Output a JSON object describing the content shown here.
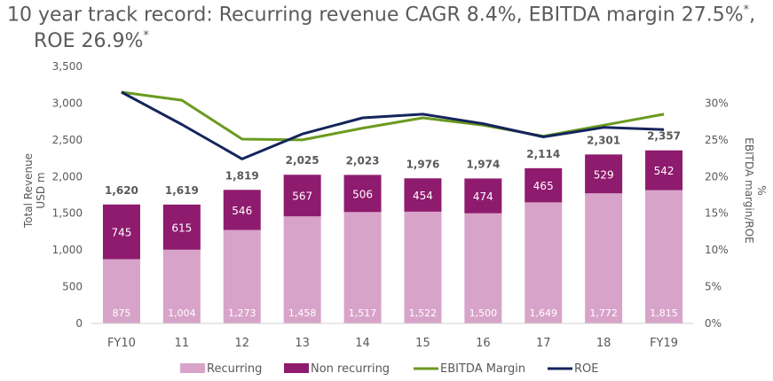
{
  "title": {
    "line1": "10 year track record: Recurring revenue CAGR 8.4%, EBITDA margin 27.5%",
    "sup1": "*",
    "line1_end": ",",
    "line2": "ROE 26.9%",
    "sup2": "*"
  },
  "colors": {
    "recurring": "#d8a3c9",
    "non_recurring": "#8e1b6e",
    "ebitda": "#6b9a1f",
    "roe": "#15245c",
    "axis_text": "#595959",
    "total_label": "#595959"
  },
  "chart_data": {
    "type": "bar",
    "stacked": true,
    "categories": [
      "FY10",
      "11",
      "12",
      "13",
      "14",
      "15",
      "16",
      "17",
      "18",
      "FY19"
    ],
    "series": [
      {
        "name": "Recurring",
        "type": "bar",
        "values": [
          875,
          1004,
          1273,
          1458,
          1517,
          1522,
          1500,
          1649,
          1772,
          1815
        ],
        "labels": [
          "875",
          "1,004",
          "1,273",
          "1,458",
          "1,517",
          "1,522",
          "1,500",
          "1,649",
          "1,772",
          "1,815"
        ]
      },
      {
        "name": "Non recurring",
        "type": "bar",
        "values": [
          745,
          615,
          546,
          567,
          506,
          454,
          474,
          465,
          529,
          542
        ],
        "labels": [
          "745",
          "615",
          "546",
          "567",
          "506",
          "454",
          "474",
          "465",
          "529",
          "542"
        ]
      },
      {
        "name": "EBITDA Margin",
        "type": "line",
        "axis": "right",
        "values": [
          31.5,
          30.4,
          25.1,
          25.0,
          26.6,
          28.0,
          27.0,
          25.5,
          27.0,
          28.5
        ]
      },
      {
        "name": "ROE",
        "type": "line",
        "axis": "right",
        "values": [
          31.5,
          27.1,
          22.4,
          25.8,
          28.0,
          28.5,
          27.2,
          25.4,
          26.7,
          26.4
        ]
      }
    ],
    "totals": [
      "1,620",
      "1,619",
      "1,819",
      "2,025",
      "2,023",
      "1,976",
      "1,974",
      "2,114",
      "2,301",
      "2,357"
    ],
    "ylabel_line1": "Total Revenue",
    "ylabel_line2": "USD m",
    "y2label_line1": "EBITDA margin/ROE",
    "y2label_line2": "%",
    "ylim": [
      0,
      3500
    ],
    "yticks": [
      "0",
      "500",
      "1,000",
      "1,500",
      "2,000",
      "2,500",
      "3,000",
      "3,500"
    ],
    "y2lim": [
      0,
      33.3
    ],
    "y2ticks": [
      "0%",
      "5%",
      "10%",
      "15%",
      "20%",
      "25%",
      "30%"
    ],
    "legend_position": "bottom",
    "grid": false
  }
}
